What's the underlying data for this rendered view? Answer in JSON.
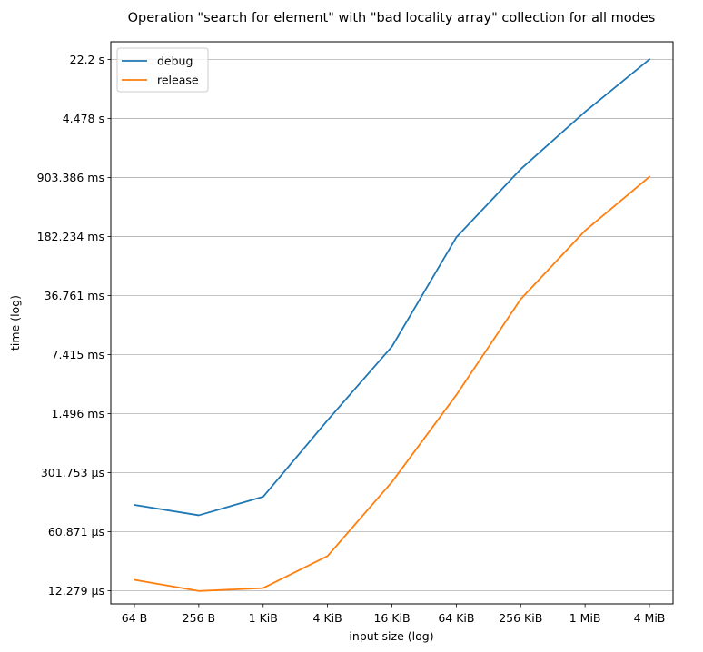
{
  "chart_data": {
    "type": "line",
    "title": "Operation \"search for element\" with \"bad locality array\" collection for all modes",
    "xlabel": "input size (log)",
    "ylabel": "time (log)",
    "x_scale": "log",
    "y_scale": "log",
    "categories": [
      "64 B",
      "256 B",
      "1 KiB",
      "4 KiB",
      "16 KiB",
      "64 KiB",
      "256 KiB",
      "1 MiB",
      "4 MiB"
    ],
    "y_ticks": [
      {
        "value": 1.2279e-05,
        "label": "12.279 µs"
      },
      {
        "value": 6.0871e-05,
        "label": "60.871 µs"
      },
      {
        "value": 0.000301753,
        "label": "301.753 µs"
      },
      {
        "value": 0.001496,
        "label": "1.496 ms"
      },
      {
        "value": 0.007415,
        "label": "7.415 ms"
      },
      {
        "value": 0.036761,
        "label": "36.761 ms"
      },
      {
        "value": 0.182234,
        "label": "182.234 ms"
      },
      {
        "value": 0.903386,
        "label": "903.386 ms"
      },
      {
        "value": 4.478,
        "label": "4.478 s"
      },
      {
        "value": 22.2,
        "label": "22.2 s"
      }
    ],
    "ylim": [
      8.6e-06,
      35.8
    ],
    "grid": "y",
    "legend_position": "top-left",
    "series": [
      {
        "name": "debug",
        "color": "#1f77b4",
        "values": [
          0.000126,
          9.5e-05,
          0.000157,
          0.00125,
          0.0092,
          0.178,
          1.13,
          5.35,
          22.2
        ]
      },
      {
        "name": "release",
        "color": "#ff7f0e",
        "values": [
          1.65e-05,
          1.22e-05,
          1.32e-05,
          3.15e-05,
          0.000234,
          0.00248,
          0.0333,
          0.214,
          0.92
        ]
      }
    ]
  }
}
